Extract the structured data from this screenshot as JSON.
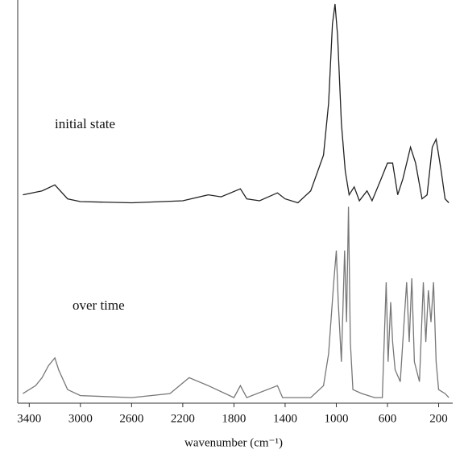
{
  "chart_data": {
    "type": "line",
    "x_label": "wavenumber (cm⁻¹)",
    "annotations": [
      "initial state",
      "over time"
    ],
    "xlim": [
      3490,
      90
    ],
    "xticks": [
      3400,
      3000,
      2600,
      2200,
      1800,
      1400,
      1000,
      600,
      200
    ],
    "ylim": [
      0,
      100
    ],
    "series": [
      {
        "name": "initial state",
        "color": "#222222",
        "x": [
          3450,
          3300,
          3200,
          3100,
          3000,
          2600,
          2200,
          2000,
          1900,
          1750,
          1700,
          1600,
          1460,
          1400,
          1300,
          1200,
          1100,
          1060,
          1030,
          1010,
          990,
          960,
          930,
          900,
          860,
          820,
          760,
          720,
          650,
          600,
          560,
          520,
          480,
          420,
          380,
          330,
          290,
          250,
          220,
          180,
          150,
          120
        ],
        "values": [
          52,
          53,
          54.5,
          51,
          50.3,
          50,
          50.5,
          52,
          51.5,
          53.5,
          51,
          50.5,
          52.5,
          51,
          50,
          53,
          62,
          75,
          95,
          100,
          92,
          70,
          58,
          52,
          54,
          50.5,
          53,
          50.5,
          56,
          60,
          60,
          52,
          56,
          64,
          60,
          51,
          52,
          64,
          66,
          58,
          51,
          50
        ]
      },
      {
        "name": "over time",
        "color": "#777777",
        "x": [
          3450,
          3350,
          3300,
          3250,
          3200,
          3170,
          3100,
          3000,
          2600,
          2300,
          2150,
          2000,
          1800,
          1750,
          1700,
          1460,
          1420,
          1200,
          1100,
          1060,
          1020,
          1000,
          985,
          960,
          935,
          920,
          905,
          890,
          870,
          800,
          700,
          640,
          610,
          595,
          575,
          560,
          540,
          500,
          470,
          450,
          430,
          410,
          390,
          350,
          320,
          300,
          280,
          260,
          240,
          220,
          200,
          150,
          120
        ],
        "values": [
          2,
          4,
          6,
          9,
          11,
          8,
          3,
          1.5,
          1,
          2,
          6,
          4,
          1,
          4,
          1,
          4,
          1,
          1,
          4,
          12,
          30,
          38,
          25,
          10,
          38,
          20,
          49,
          15,
          3,
          2,
          1,
          1,
          30,
          10,
          25,
          15,
          8,
          5,
          20,
          30,
          15,
          31,
          10,
          5,
          30,
          15,
          28,
          20,
          30,
          10,
          3,
          2,
          1
        ]
      }
    ]
  }
}
